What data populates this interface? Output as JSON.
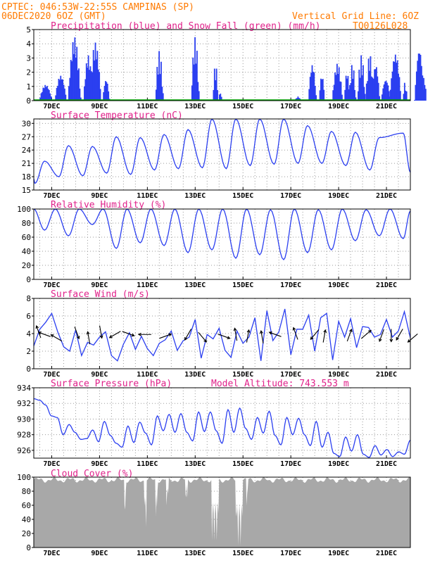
{
  "header": {
    "line1": "CPTEC:   046:53W-22:55S  CAMPINAS (SP)",
    "line2": "06DEC2020 6OZ (GMT)",
    "grid_note": "Vertical Grid Line: 6OZ",
    "code": "TQ0126L028"
  },
  "colors": {
    "header": "#ff7a00",
    "title": "#e0218a",
    "line": "#2b3ff0",
    "precip": "#2b3ff0",
    "snow": "#00aa00",
    "cloud": "#a8a8a8",
    "grid": "#9a9a9a"
  },
  "x_ticks": [
    "7DEC",
    "9DEC",
    "11DEC",
    "13DEC",
    "15DEC",
    "17DEC",
    "19DEC",
    "21DEC"
  ],
  "chart_data": [
    {
      "type": "bar",
      "title": "Precipitation (blue) and Snow Fall (green) (mm/h)",
      "ylim": [
        0,
        5
      ],
      "yticks": [
        "0",
        "1",
        "2",
        "3",
        "4",
        "5"
      ],
      "x_unit": "days since 6DEC 06Z",
      "bursts": [
        {
          "x": 0.2,
          "w": 0.55,
          "peak": 1.2
        },
        {
          "x": 0.85,
          "w": 0.5,
          "peak": 1.9
        },
        {
          "x": 1.4,
          "w": 0.55,
          "peak": 4.6
        },
        {
          "x": 2.05,
          "w": 0.4,
          "peak": 3.3
        },
        {
          "x": 2.3,
          "w": 0.5,
          "peak": 4.2
        },
        {
          "x": 2.85,
          "w": 0.3,
          "peak": 1.6
        },
        {
          "x": 5.05,
          "w": 0.35,
          "peak": 3.5
        },
        {
          "x": 6.55,
          "w": 0.35,
          "peak": 4.5
        },
        {
          "x": 7.45,
          "w": 0.25,
          "peak": 2.6
        },
        {
          "x": 7.7,
          "w": 0.15,
          "peak": 0.6
        },
        {
          "x": 10.9,
          "w": 0.25,
          "peak": 0.3
        },
        {
          "x": 11.45,
          "w": 0.35,
          "peak": 2.7
        },
        {
          "x": 11.9,
          "w": 0.25,
          "peak": 1.9
        },
        {
          "x": 12.45,
          "w": 0.45,
          "peak": 2.7
        },
        {
          "x": 12.95,
          "w": 0.25,
          "peak": 2.1
        },
        {
          "x": 13.15,
          "w": 0.3,
          "peak": 2.6
        },
        {
          "x": 13.5,
          "w": 0.35,
          "peak": 3.2
        },
        {
          "x": 13.85,
          "w": 0.35,
          "peak": 3.3
        },
        {
          "x": 14.1,
          "w": 0.35,
          "peak": 2.7
        },
        {
          "x": 14.5,
          "w": 0.4,
          "peak": 1.6
        },
        {
          "x": 14.85,
          "w": 0.5,
          "peak": 3.5
        },
        {
          "x": 15.4,
          "w": 0.2,
          "peak": 1.3
        },
        {
          "x": 15.9,
          "w": 0.4,
          "peak": 3.9
        },
        {
          "x": 16.2,
          "w": 0.2,
          "peak": 1.7
        }
      ]
    },
    {
      "type": "line",
      "title": "Surface Temperature (nC)",
      "ylim": [
        15,
        31
      ],
      "yticks": [
        "15",
        "18",
        "21",
        "24",
        "27",
        "30"
      ],
      "x_unit": "days since 6DEC 06Z",
      "daily_max": [
        21.5,
        25.0,
        24.8,
        27.0,
        26.8,
        27.5,
        28.6,
        31.0,
        31.0,
        31.0,
        31.0,
        29.5,
        28.2,
        28.0,
        26.8,
        27.8
      ],
      "daily_min": [
        16.5,
        18.0,
        18.2,
        18.8,
        18.5,
        19.5,
        19.8,
        20.0,
        19.8,
        20.5,
        20.8,
        21.0,
        21.0,
        20.5,
        19.5
      ],
      "start_value": 17.5
    },
    {
      "type": "line",
      "title": "Relative Humidity (%)",
      "ylim": [
        0,
        100
      ],
      "yticks": [
        "0",
        "20",
        "40",
        "60",
        "80",
        "100"
      ],
      "x_unit": "days since 6DEC 06Z",
      "daily_min": [
        70,
        62,
        78,
        44,
        52,
        48,
        38,
        42,
        30,
        35,
        28,
        38,
        42,
        55,
        62,
        58
      ],
      "daily_max": [
        100,
        100,
        100,
        100,
        100,
        100,
        100,
        100,
        100,
        99,
        100,
        99,
        100,
        99,
        100
      ],
      "start_value": 100
    },
    {
      "type": "line",
      "title": "Surface Wind (m/s)",
      "ylim": [
        0,
        8
      ],
      "yticks": [
        "0",
        "2",
        "4",
        "6",
        "8"
      ],
      "x_unit": "days since 6DEC 06Z",
      "speed": [
        2.6,
        4.5,
        5.3,
        6.3,
        4.2,
        2.5,
        2.0,
        4.4,
        1.5,
        3.0,
        2.7,
        3.6,
        4.2,
        1.5,
        0.9,
        2.8,
        4.1,
        2.2,
        3.7,
        2.3,
        1.5,
        2.9,
        3.3,
        4.3,
        2.1,
        3.2,
        3.6,
        5.6,
        1.2,
        3.9,
        3.4,
        4.6,
        2.1,
        1.3,
        4.3,
        2.9,
        3.6,
        5.8,
        0.9,
        6.6,
        3.2,
        4.2,
        6.8,
        1.6,
        4.5,
        4.5,
        6.1,
        2.0,
        5.8,
        6.3,
        1.0,
        5.4,
        3.6,
        5.7,
        2.4,
        4.8,
        4.7,
        3.6,
        3.9,
        5.6,
        3.6,
        4.3,
        6.5,
        3.5
      ],
      "arrows": [
        {
          "x": 0.2,
          "y": 4.2,
          "dir": 200
        },
        {
          "x": 0.45,
          "y": 3.9,
          "dir": 250
        },
        {
          "x": 0.95,
          "y": 3.5,
          "dir": 240
        },
        {
          "x": 1.8,
          "y": 4.1,
          "dir": 20
        },
        {
          "x": 2.3,
          "y": 3.5,
          "dir": 190
        },
        {
          "x": 2.8,
          "y": 4.2,
          "dir": 10
        },
        {
          "x": 3.4,
          "y": 3.9,
          "dir": 300
        },
        {
          "x": 3.95,
          "y": 4.0,
          "dir": 70
        },
        {
          "x": 4.65,
          "y": 3.9,
          "dir": 270
        },
        {
          "x": 5.5,
          "y": 3.7,
          "dir": 110
        },
        {
          "x": 6.45,
          "y": 3.9,
          "dir": 330
        },
        {
          "x": 7.05,
          "y": 3.6,
          "dir": 40
        },
        {
          "x": 7.95,
          "y": 3.7,
          "dir": 70
        },
        {
          "x": 8.45,
          "y": 3.9,
          "dir": 190
        },
        {
          "x": 8.95,
          "y": 3.7,
          "dir": 170
        },
        {
          "x": 9.55,
          "y": 3.6,
          "dir": 190
        },
        {
          "x": 10.1,
          "y": 3.9,
          "dir": 250
        },
        {
          "x": 10.95,
          "y": 4.0,
          "dir": 200
        },
        {
          "x": 11.75,
          "y": 3.9,
          "dir": 320
        },
        {
          "x": 12.15,
          "y": 3.7,
          "dir": 170
        },
        {
          "x": 13.2,
          "y": 3.8,
          "dir": 160
        },
        {
          "x": 13.9,
          "y": 3.9,
          "dir": 130
        },
        {
          "x": 14.55,
          "y": 3.8,
          "dir": 340
        },
        {
          "x": 14.95,
          "y": 3.8,
          "dir": 0
        },
        {
          "x": 15.3,
          "y": 3.9,
          "dir": 330
        },
        {
          "x": 15.85,
          "y": 3.5,
          "dir": 310
        }
      ]
    },
    {
      "type": "line",
      "title": "Surface Pressure (hPa)",
      "annotation": "Model Altitude: 743.553 m",
      "ylim": [
        925,
        934
      ],
      "yticks": [
        "926",
        "928",
        "930",
        "932",
        "934"
      ],
      "x_unit": "days since 6DEC 06Z",
      "values": [
        932.6,
        932.4,
        931.8,
        930.4,
        930.2,
        928.0,
        929.3,
        928.3,
        927.4,
        927.5,
        928.6,
        927.1,
        929.7,
        927.9,
        926.9,
        926.4,
        929.1,
        927.0,
        929.6,
        928.2,
        926.7,
        930.4,
        928.5,
        930.6,
        928.3,
        930.7,
        928.3,
        927.2,
        930.9,
        928.4,
        930.9,
        928.5,
        926.9,
        931.2,
        928.3,
        931.4,
        928.8,
        927.4,
        930.2,
        928.2,
        931.0,
        927.9,
        926.7,
        930.2,
        928.0,
        930.1,
        928.0,
        926.6,
        929.7,
        926.4,
        928.3,
        925.6,
        925.2,
        927.7,
        925.9,
        928.0,
        925.5,
        925.1,
        926.6,
        925.4,
        926.1,
        925.2,
        925.8,
        925.5,
        927.3
      ]
    },
    {
      "type": "area",
      "title": "Cloud Cover (%)",
      "ylim": [
        0,
        100
      ],
      "yticks": [
        "0",
        "20",
        "40",
        "60",
        "80",
        "100"
      ],
      "x_unit": "days since 6DEC 06Z",
      "baseline": 96,
      "gaps": [
        {
          "x": 3.78,
          "w": 0.08,
          "low": 20
        },
        {
          "x": 4.6,
          "w": 0.1,
          "low": 30
        },
        {
          "x": 5.1,
          "w": 0.08,
          "low": 45
        },
        {
          "x": 5.55,
          "w": 0.1,
          "low": 60
        },
        {
          "x": 6.35,
          "w": 0.1,
          "low": 50
        },
        {
          "x": 7.45,
          "w": 0.3,
          "low": 10
        },
        {
          "x": 8.45,
          "w": 0.3,
          "low": 3
        },
        {
          "x": 8.9,
          "w": 0.06,
          "low": 60
        }
      ]
    }
  ]
}
